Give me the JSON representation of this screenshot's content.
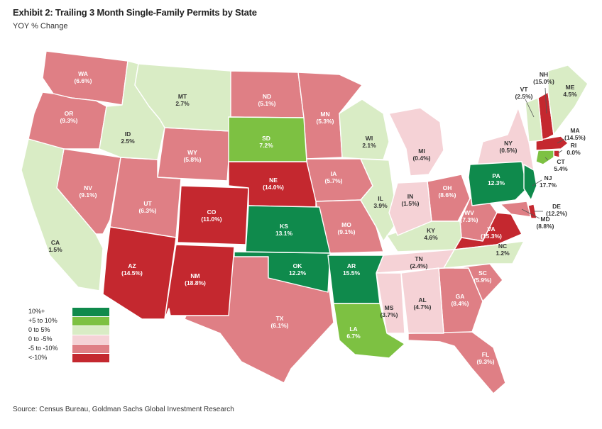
{
  "header": {
    "title": "Exhibit 2: Trailing 3 Month Single-Family Permits by State",
    "subtitle": "YOY % Change"
  },
  "source": "Source: Census Bureau, Goldman Sachs Global Investment Research",
  "colors": {
    "dark_green": "#0f8a4c",
    "light_green": "#7dc142",
    "pale_green": "#d9ecc5",
    "pale_pink": "#f5d2d6",
    "pink": "#df7f85",
    "red": "#c4282f"
  },
  "legend": [
    {
      "label": "10%+",
      "color": "#0f8a4c"
    },
    {
      "label": "+5 to 10%",
      "color": "#7dc142"
    },
    {
      "label": "0 to 5%",
      "color": "#d9ecc5"
    },
    {
      "label": "0 to -5%",
      "color": "#f5d2d6"
    },
    {
      "label": "-5 to -10%",
      "color": "#df7f85"
    },
    {
      "label": "<-10%",
      "color": "#c4282f"
    }
  ],
  "states": {
    "WA": {
      "abbr": "WA",
      "value": "(6.6%)"
    },
    "OR": {
      "abbr": "OR",
      "value": "(9.3%)"
    },
    "CA": {
      "abbr": "CA",
      "value": "1.5%"
    },
    "NV": {
      "abbr": "NV",
      "value": "(9.1%)"
    },
    "ID": {
      "abbr": "ID",
      "value": "2.5%"
    },
    "MT": {
      "abbr": "MT",
      "value": "2.7%"
    },
    "WY": {
      "abbr": "WY",
      "value": "(5.8%)"
    },
    "UT": {
      "abbr": "UT",
      "value": "(6.3%)"
    },
    "AZ": {
      "abbr": "AZ",
      "value": "(14.5%)"
    },
    "CO": {
      "abbr": "CO",
      "value": "(11.0%)"
    },
    "NM": {
      "abbr": "NM",
      "value": "(18.8%)"
    },
    "ND": {
      "abbr": "ND",
      "value": "(5.1%)"
    },
    "SD": {
      "abbr": "SD",
      "value": "7.2%"
    },
    "NE": {
      "abbr": "NE",
      "value": "(14.0%)"
    },
    "KS": {
      "abbr": "KS",
      "value": "13.1%"
    },
    "OK": {
      "abbr": "OK",
      "value": "12.2%"
    },
    "TX": {
      "abbr": "TX",
      "value": "(6.1%)"
    },
    "MN": {
      "abbr": "MN",
      "value": "(5.3%)"
    },
    "IA": {
      "abbr": "IA",
      "value": "(5.7%)"
    },
    "MO": {
      "abbr": "MO",
      "value": "(9.1%)"
    },
    "AR": {
      "abbr": "AR",
      "value": "15.5%"
    },
    "LA": {
      "abbr": "LA",
      "value": "6.7%"
    },
    "WI": {
      "abbr": "WI",
      "value": "2.1%"
    },
    "IL": {
      "abbr": "IL",
      "value": "3.9%"
    },
    "MI": {
      "abbr": "MI",
      "value": "(0.4%)"
    },
    "IN": {
      "abbr": "IN",
      "value": "(1.5%)"
    },
    "OH": {
      "abbr": "OH",
      "value": "(8.6%)"
    },
    "KY": {
      "abbr": "KY",
      "value": "4.6%"
    },
    "TN": {
      "abbr": "TN",
      "value": "(2.4%)"
    },
    "MS": {
      "abbr": "MS",
      "value": "(3.7%)"
    },
    "AL": {
      "abbr": "AL",
      "value": "(4.7%)"
    },
    "GA": {
      "abbr": "GA",
      "value": "(8.4%)"
    },
    "FL": {
      "abbr": "FL",
      "value": "(9.3%)"
    },
    "SC": {
      "abbr": "SC",
      "value": "(5.9%)"
    },
    "NC": {
      "abbr": "NC",
      "value": "1.2%"
    },
    "VA": {
      "abbr": "VA",
      "value": "(15.3%)"
    },
    "WV": {
      "abbr": "WV",
      "value": "(7.3%)"
    },
    "PA": {
      "abbr": "PA",
      "value": "12.3%"
    },
    "NY": {
      "abbr": "NY",
      "value": "(0.5%)"
    },
    "NJ": {
      "abbr": "NJ",
      "value": "17.7%"
    },
    "DE": {
      "abbr": "DE",
      "value": "(12.2%)"
    },
    "MD": {
      "abbr": "MD",
      "value": "(8.8%)"
    },
    "VT": {
      "abbr": "VT",
      "value": "(2.5%)"
    },
    "NH": {
      "abbr": "NH",
      "value": "(15.0%)"
    },
    "ME": {
      "abbr": "ME",
      "value": "4.5%"
    },
    "MA": {
      "abbr": "MA",
      "value": "(14.5%)"
    },
    "RI": {
      "abbr": "RI",
      "value": "0.0%"
    },
    "CT": {
      "abbr": "CT",
      "value": "5.4%"
    }
  }
}
